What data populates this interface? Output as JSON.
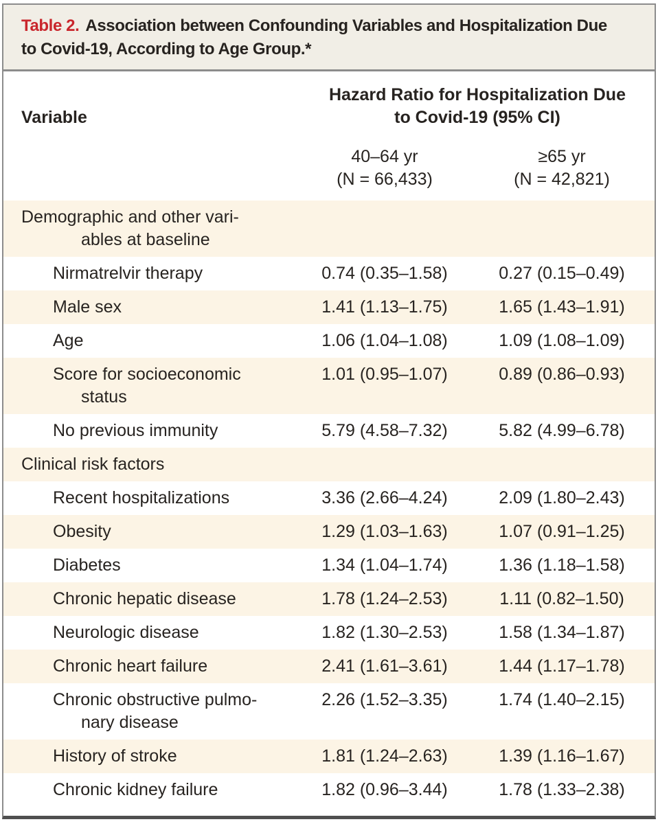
{
  "theme": {
    "accent_red": "#c9262c",
    "title_bg": "#f1eee6",
    "shade_bg": "#fcf4e5",
    "border_gray": "#8c8c8c",
    "bottom_border": "#4f4f4f",
    "text": "#272320"
  },
  "table": {
    "label": "Table 2.",
    "title_lines": [
      "Association between Confounding Variables and Hospitalization Due",
      "to Covid-19, According to Age Group.*"
    ],
    "columns": {
      "variable": "Variable",
      "group_header_lines": [
        "Hazard Ratio for Hospitalization Due",
        "to Covid-19 (95% CI)"
      ],
      "subcolumns": [
        {
          "range": "40–64 yr",
          "n": "(N = 66,433)"
        },
        {
          "range": "≥65 yr",
          "n": "(N = 42,821)"
        }
      ]
    },
    "sections": [
      {
        "header": "Demographic and other variables at baseline",
        "header_lines": [
          "Demographic and other vari-",
          "ables at baseline"
        ],
        "rows": [
          {
            "label": "Nirmatrelvir therapy",
            "hr_40_64": "0.74 (0.35–1.58)",
            "hr_ge65": "0.27 (0.15–0.49)"
          },
          {
            "label": "Male sex",
            "hr_40_64": "1.41 (1.13–1.75)",
            "hr_ge65": "1.65 (1.43–1.91)"
          },
          {
            "label": "Age",
            "hr_40_64": "1.06 (1.04–1.08)",
            "hr_ge65": "1.09 (1.08–1.09)"
          },
          {
            "label": "Score for socioeconomic status",
            "lines": [
              "Score for socioeconomic",
              "status"
            ],
            "hr_40_64": "1.01 (0.95–1.07)",
            "hr_ge65": "0.89 (0.86–0.93)"
          },
          {
            "label": "No previous immunity",
            "hr_40_64": "5.79 (4.58–7.32)",
            "hr_ge65": "5.82 (4.99–6.78)"
          }
        ]
      },
      {
        "header": "Clinical risk factors",
        "header_lines": [
          "Clinical risk factors"
        ],
        "rows": [
          {
            "label": "Recent hospitalizations",
            "hr_40_64": "3.36 (2.66–4.24)",
            "hr_ge65": "2.09 (1.80–2.43)"
          },
          {
            "label": "Obesity",
            "hr_40_64": "1.29 (1.03–1.63)",
            "hr_ge65": "1.07 (0.91–1.25)"
          },
          {
            "label": "Diabetes",
            "hr_40_64": "1.34 (1.04–1.74)",
            "hr_ge65": "1.36 (1.18–1.58)"
          },
          {
            "label": "Chronic hepatic disease",
            "hr_40_64": "1.78 (1.24–2.53)",
            "hr_ge65": "1.11 (0.82–1.50)"
          },
          {
            "label": "Neurologic disease",
            "hr_40_64": "1.82 (1.30–2.53)",
            "hr_ge65": "1.58 (1.34–1.87)"
          },
          {
            "label": "Chronic heart failure",
            "hr_40_64": "2.41 (1.61–3.61)",
            "hr_ge65": "1.44 (1.17–1.78)"
          },
          {
            "label": "Chronic obstructive pulmonary disease",
            "lines": [
              "Chronic obstructive pulmo-",
              "nary disease"
            ],
            "hr_40_64": "2.26 (1.52–3.35)",
            "hr_ge65": "1.74 (1.40–2.15)"
          },
          {
            "label": "History of stroke",
            "hr_40_64": "1.81 (1.24–2.63)",
            "hr_ge65": "1.39 (1.16–1.67)"
          },
          {
            "label": "Chronic kidney failure",
            "hr_40_64": "1.82 (0.96–3.44)",
            "hr_ge65": "1.78 (1.33–2.38)"
          }
        ]
      }
    ]
  }
}
